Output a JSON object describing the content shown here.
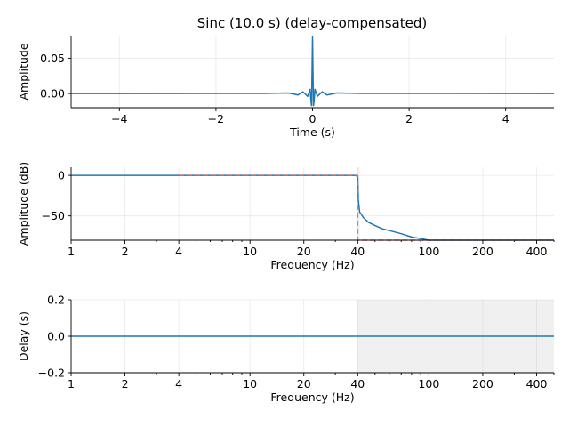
{
  "chart_data": [
    {
      "type": "line",
      "title": "Sinc (10.0 s) (delay-compensated)",
      "xlabel": "Time (s)",
      "ylabel": "Amplitude",
      "xlim": [
        -5,
        5
      ],
      "ylim": [
        -0.02,
        0.082
      ],
      "x_ticks": [
        -4,
        -2,
        0,
        2,
        4
      ],
      "x_tick_labels": [
        "−4",
        "−2",
        "0",
        "2",
        "4"
      ],
      "y_ticks": [
        0.0,
        0.05
      ],
      "y_tick_labels": [
        "0.00",
        "0.05"
      ],
      "grid": true,
      "series": [
        {
          "color": "#1f77b4",
          "x": [
            -5,
            -1.0,
            -0.5,
            -0.3,
            -0.2,
            -0.1,
            -0.05,
            -0.03,
            -0.02,
            -0.01,
            0.0,
            0.01,
            0.02,
            0.03,
            0.05,
            0.1,
            0.2,
            0.3,
            0.5,
            1.0,
            5
          ],
          "y": [
            0.0,
            0.0002,
            0.0008,
            -0.002,
            0.0025,
            -0.004,
            0.006,
            -0.012,
            -0.017,
            0.03,
            0.08,
            0.03,
            -0.017,
            -0.012,
            0.006,
            -0.004,
            0.0025,
            -0.002,
            0.0008,
            0.0002,
            0.0
          ]
        }
      ]
    },
    {
      "type": "line",
      "xlabel": "Frequency (Hz)",
      "ylabel": "Amplitude (dB)",
      "xscale": "log",
      "xlim": [
        1,
        500
      ],
      "ylim": [
        -80,
        10
      ],
      "x_ticks": [
        1,
        2,
        4,
        10,
        20,
        40,
        100,
        200,
        400
      ],
      "x_tick_labels": [
        "1",
        "2",
        "4",
        "10",
        "20",
        "40",
        "100",
        "200",
        "400"
      ],
      "y_ticks": [
        0,
        -50
      ],
      "y_tick_labels": [
        "0",
        "−50"
      ],
      "grid": true,
      "shaded_x_range": [
        40,
        41
      ],
      "series": [
        {
          "color": "#1f77b4",
          "x": [
            1,
            10,
            39,
            40,
            40.3,
            41,
            43,
            46,
            50,
            55,
            60,
            70,
            80,
            90,
            100,
            500
          ],
          "y": [
            0,
            0,
            0,
            -2,
            -30,
            -45,
            -52,
            -58,
            -62,
            -66,
            -68,
            -72,
            -76,
            -78,
            -80,
            -80
          ]
        },
        {
          "color": "#e8615a",
          "style": "dashed",
          "x": [
            4,
            40,
            40,
            500
          ],
          "y": [
            0,
            0,
            -80,
            -80
          ]
        }
      ]
    },
    {
      "type": "line",
      "xlabel": "Frequency (Hz)",
      "ylabel": "Delay (s)",
      "xscale": "log",
      "xlim": [
        1,
        500
      ],
      "ylim": [
        -0.2,
        0.2
      ],
      "x_ticks": [
        1,
        2,
        4,
        10,
        20,
        40,
        100,
        200,
        400
      ],
      "x_tick_labels": [
        "1",
        "2",
        "4",
        "10",
        "20",
        "40",
        "100",
        "200",
        "400"
      ],
      "y_ticks": [
        0.2,
        0.0,
        -0.2
      ],
      "y_tick_labels": [
        "0.2",
        "0.0",
        "−0.2"
      ],
      "grid": true,
      "shaded_x_range": [
        40,
        500
      ],
      "series": [
        {
          "color": "#1f77b4",
          "x": [
            1,
            500
          ],
          "y": [
            0,
            0
          ]
        }
      ]
    }
  ]
}
